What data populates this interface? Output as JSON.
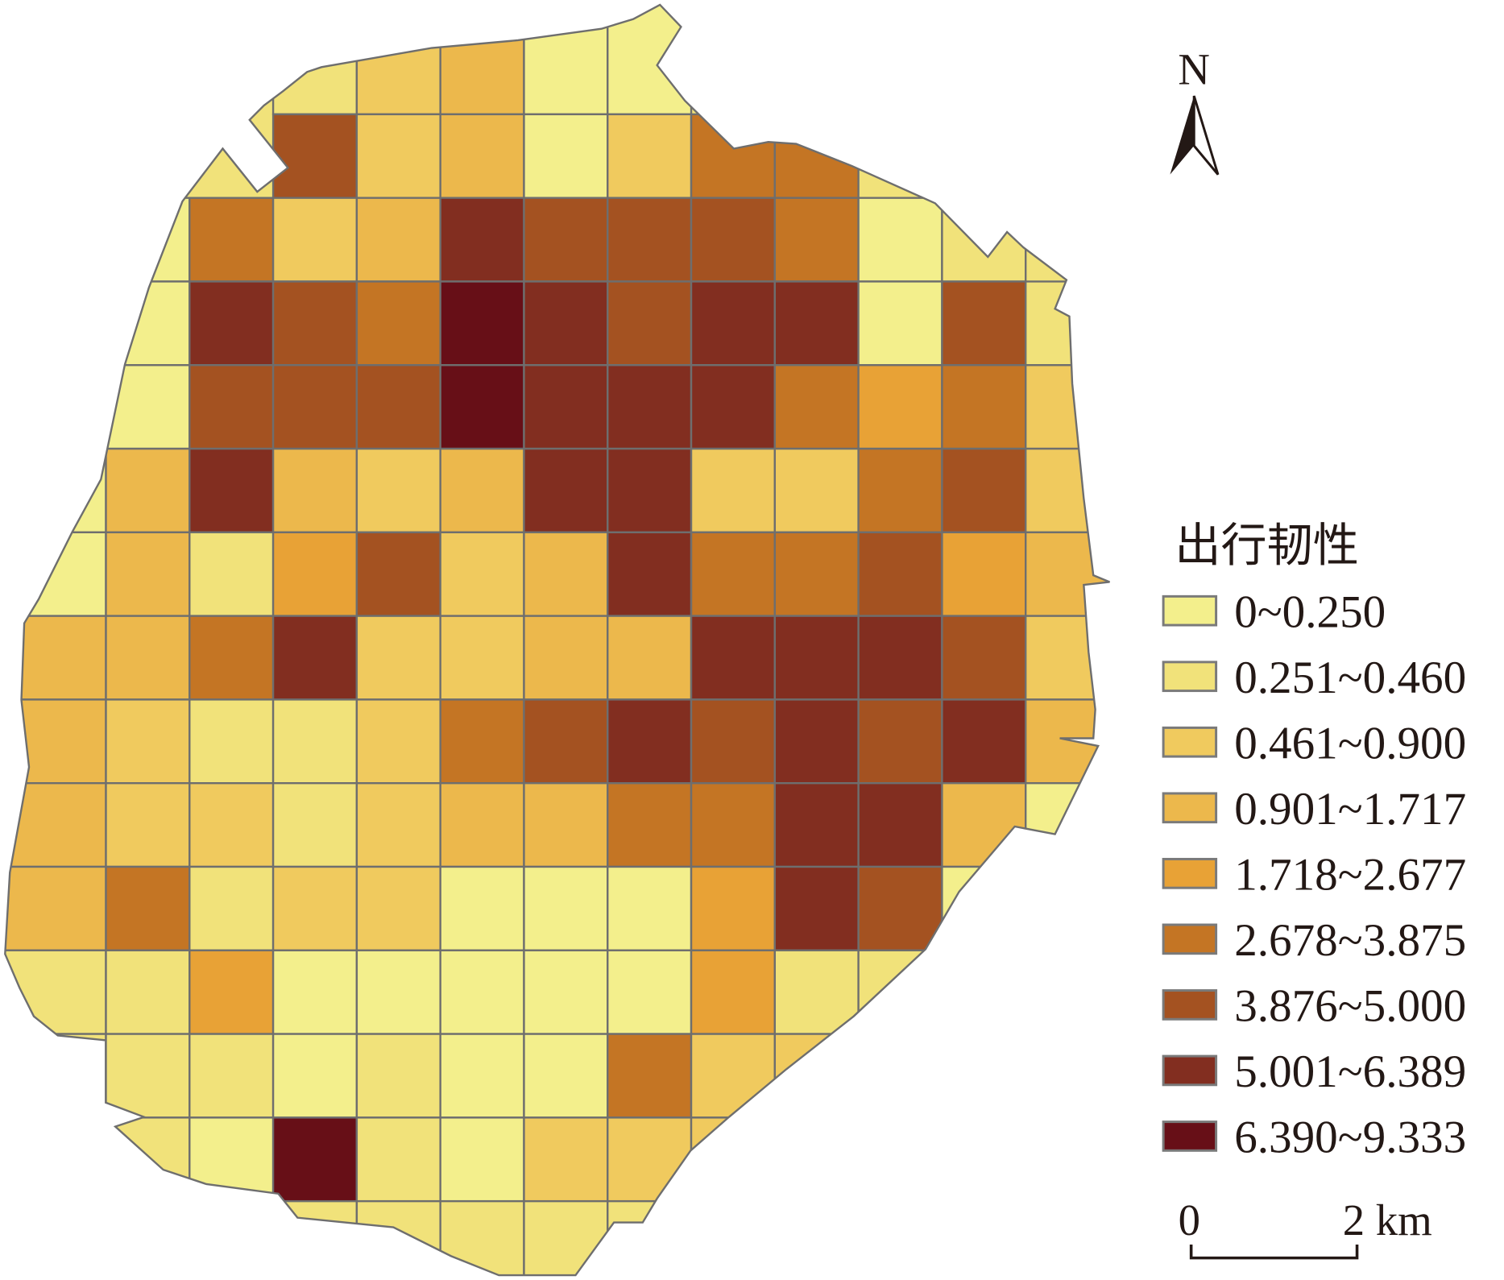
{
  "north_label": "N",
  "legend": {
    "title": "出行韧性",
    "classes": [
      {
        "label": "0~0.250",
        "color": "#F3EF8C"
      },
      {
        "label": "0.251~0.460",
        "color": "#F1E27A"
      },
      {
        "label": "0.461~0.900",
        "color": "#F0CA5E"
      },
      {
        "label": "0.901~1.717",
        "color": "#ECB84C"
      },
      {
        "label": "1.718~2.677",
        "color": "#E8A236"
      },
      {
        "label": "2.678~3.875",
        "color": "#C47524"
      },
      {
        "label": "3.876~5.000",
        "color": "#A45221"
      },
      {
        "label": "5.001~6.389",
        "color": "#822E20"
      },
      {
        "label": "6.390~9.333",
        "color": "#670F17"
      }
    ]
  },
  "scale_bar": {
    "start": "0",
    "end": "2 km"
  },
  "map": {
    "grid": [
      [
        -1,
        -1,
        -1,
        1,
        2,
        3,
        0,
        0,
        -1,
        -1,
        -1,
        -1,
        -1
      ],
      [
        -1,
        -1,
        -1,
        6,
        2,
        3,
        0,
        2,
        5,
        5,
        -1,
        -1,
        -1
      ],
      [
        -1,
        0,
        5,
        2,
        3,
        7,
        6,
        6,
        6,
        5,
        0,
        1,
        -1
      ],
      [
        -1,
        0,
        7,
        6,
        5,
        8,
        7,
        6,
        7,
        7,
        0,
        6,
        1
      ],
      [
        -1,
        0,
        6,
        6,
        6,
        8,
        7,
        7,
        7,
        5,
        4,
        5,
        2
      ],
      [
        0,
        3,
        7,
        3,
        2,
        3,
        7,
        7,
        2,
        2,
        5,
        6,
        2
      ],
      [
        0,
        3,
        1,
        4,
        6,
        2,
        3,
        7,
        5,
        5,
        6,
        4,
        3
      ],
      [
        3,
        3,
        5,
        7,
        2,
        2,
        3,
        3,
        7,
        7,
        7,
        6,
        2
      ],
      [
        3,
        2,
        1,
        1,
        2,
        5,
        6,
        7,
        6,
        7,
        6,
        7,
        3
      ],
      [
        3,
        2,
        2,
        1,
        2,
        3,
        3,
        5,
        5,
        7,
        7,
        3,
        0
      ],
      [
        3,
        5,
        1,
        2,
        2,
        0,
        0,
        0,
        4,
        7,
        6,
        0,
        -1
      ],
      [
        1,
        1,
        4,
        0,
        0,
        0,
        0,
        0,
        4,
        1,
        1,
        -1,
        -1
      ],
      [
        1,
        1,
        1,
        0,
        1,
        0,
        0,
        5,
        2,
        2,
        -1,
        -1,
        -1
      ],
      [
        1,
        1,
        0,
        8,
        1,
        0,
        2,
        2,
        2,
        -1,
        -1,
        -1,
        -1
      ],
      [
        -1,
        -1,
        -1,
        1,
        1,
        1,
        1,
        1,
        -1,
        -1,
        -1,
        -1,
        -1
      ]
    ]
  }
}
